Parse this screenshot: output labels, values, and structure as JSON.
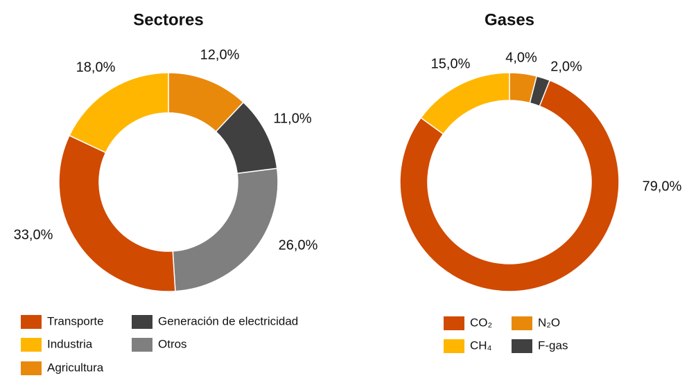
{
  "chart_data": [
    {
      "type": "donut",
      "title": "Sectores",
      "categories": [
        "Agricultura",
        "Generación de electricidad",
        "Otros",
        "Transporte",
        "Industria"
      ],
      "values": [
        12,
        11,
        26,
        33,
        18
      ],
      "value_labels": [
        "12,0%",
        "11,0%",
        "26,0%",
        "33,0%",
        "18,0%"
      ],
      "colors": [
        "#e8890c",
        "#404040",
        "#7f7f7f",
        "#d04a02",
        "#ffb600"
      ]
    },
    {
      "type": "donut",
      "title": "Gases",
      "categories": [
        "N₂O",
        "F-gas",
        "CO₂",
        "CH₄"
      ],
      "values": [
        4,
        2,
        79,
        15
      ],
      "value_labels": [
        "4,0%",
        "2,0%",
        "79,0%",
        "15,0%"
      ],
      "colors": [
        "#e8890c",
        "#404040",
        "#d04a02",
        "#ffb600"
      ]
    }
  ]
}
